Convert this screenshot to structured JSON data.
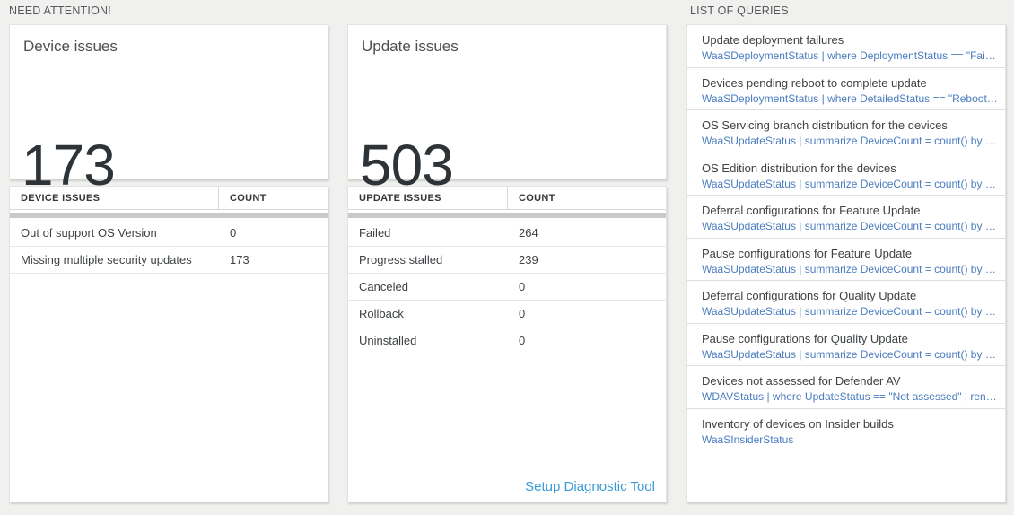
{
  "need_attention": {
    "label": "NEED ATTENTION!",
    "device_card": {
      "title": "Device issues",
      "count": "173",
      "table": {
        "columns": [
          "DEVICE ISSUES",
          "COUNT"
        ],
        "rows": [
          {
            "name": "Out of support OS Version",
            "count": "0"
          },
          {
            "name": "Missing multiple security updates",
            "count": "173"
          }
        ]
      }
    },
    "update_card": {
      "title": "Update issues",
      "count": "503",
      "table": {
        "columns": [
          "UPDATE ISSUES",
          "COUNT"
        ],
        "rows": [
          {
            "name": "Failed",
            "count": "264"
          },
          {
            "name": "Progress stalled",
            "count": "239"
          },
          {
            "name": "Canceled",
            "count": "0"
          },
          {
            "name": "Rollback",
            "count": "0"
          },
          {
            "name": "Uninstalled",
            "count": "0"
          }
        ]
      },
      "link_label": "Setup Diagnostic Tool"
    }
  },
  "queries": {
    "label": "LIST OF QUERIES",
    "items": [
      {
        "title": "Update deployment failures",
        "query": "WaaSDeploymentStatus | where DeploymentStatus == \"Failed\" |..."
      },
      {
        "title": "Devices pending reboot to complete update",
        "query": "WaaSDeploymentStatus | where DetailedStatus == \"Reboot pend..."
      },
      {
        "title": "OS Servicing branch distribution for the devices",
        "query": "WaaSUpdateStatus | summarize DeviceCount = count() by OSSer..."
      },
      {
        "title": "OS Edition distribution for the devices",
        "query": "WaaSUpdateStatus | summarize DeviceCount = count() by OSEdit..."
      },
      {
        "title": "Deferral configurations for Feature Update",
        "query": "WaaSUpdateStatus | summarize DeviceCount = count() by Featur..."
      },
      {
        "title": "Pause configurations for Feature Update",
        "query": "WaaSUpdateStatus | summarize DeviceCount = count() by Featur..."
      },
      {
        "title": "Deferral configurations for Quality Update",
        "query": "WaaSUpdateStatus | summarize DeviceCount = count() by Qualit..."
      },
      {
        "title": "Pause configurations for Quality Update",
        "query": "WaaSUpdateStatus | summarize DeviceCount = count() by Qualit..."
      },
      {
        "title": "Devices not assessed for Defender AV",
        "query": "WDAVStatus | where UpdateStatus == \"Not assessed\" | render ta..."
      },
      {
        "title": "Inventory of devices on Insider builds",
        "query": "WaaSInsiderStatus"
      }
    ]
  },
  "colors": {
    "page_background": "#f0f0ef",
    "card_background": "#ffffff",
    "big_number_text": "#2e3338",
    "query_code_blue": "#4a7cbf",
    "link_blue": "#3a9bd9",
    "scrollbar_gray": "#c9c9c9"
  }
}
